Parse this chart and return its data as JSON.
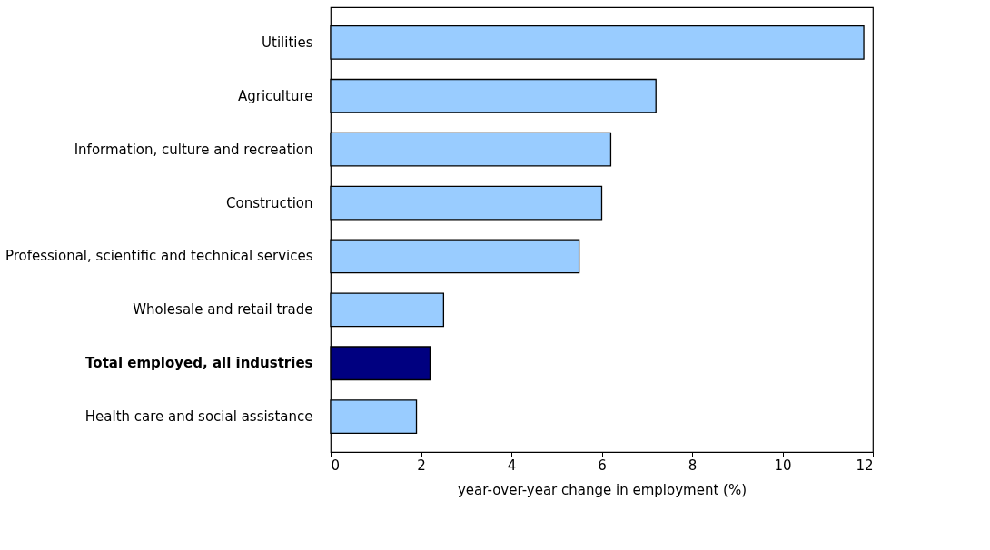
{
  "chart_data": {
    "type": "bar",
    "orientation": "horizontal",
    "xlabel": "year-over-year change in employment (%)",
    "categories": [
      "Utilities",
      "Agriculture",
      "Information, culture and recreation",
      "Construction",
      "Professional, scientific and technical services",
      "Wholesale and retail trade",
      "Total employed, all industries",
      "Health care and social assistance"
    ],
    "values": [
      11.8,
      7.2,
      6.2,
      6.0,
      5.5,
      2.5,
      2.2,
      1.9
    ],
    "colors": [
      "#99ccff",
      "#99ccff",
      "#99ccff",
      "#99ccff",
      "#99ccff",
      "#99ccff",
      "#000080",
      "#99ccff"
    ],
    "xlim": [
      0,
      12
    ],
    "xticks": [
      0,
      2,
      4,
      6,
      8,
      10,
      12
    ],
    "grid": false
  }
}
